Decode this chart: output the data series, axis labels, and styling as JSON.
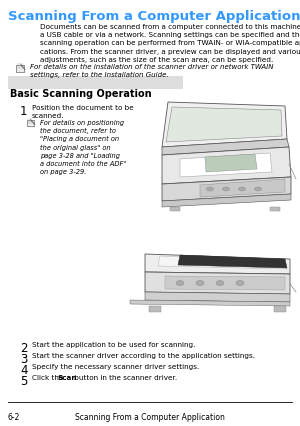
{
  "bg_color": "#ffffff",
  "title": "Scanning From a Computer Application",
  "title_color": "#3399ff",
  "title_fontsize": 9.5,
  "body_text": "Documents can be scanned from a computer connected to this machine with\na USB cable or via a network. Scanning settings can be specified and the\nscanning operation can be performed from TWAIN- or WIA-compatible appli-\ncations. From the scanner driver, a preview can be displayed and various\nadjustments, such as the size of the scan area, can be specified.",
  "body_fontsize": 5.2,
  "body_color": "#000000",
  "note1_text": "For details on the installation of the scanner driver or network TWAIN\nsettings, refer to the Installation Guide.",
  "note_fontsize": 5.0,
  "section_title": "Basic Scanning Operation",
  "section_fontsize": 7.0,
  "step1_label": "1",
  "step1_text": "Position the document to be\nscanned.",
  "step1_note": "For details on positioning\nthe document, refer to\n\"Placing a document on\nthe original glass\" on\npage 3-28 and \"Loading\na document into the ADF\"\non page 3-29.",
  "step2_text": "Start the application to be used for scanning.",
  "step3_text": "Start the scanner driver according to the application settings.",
  "step4_text": "Specify the necessary scanner driver settings.",
  "step5_pre": "Click the ",
  "step5_bold": "Scan",
  "step5_post": " button in the scanner driver.",
  "footer_left": "6-2",
  "footer_center": "Scanning From a Computer Application",
  "footer_fontsize": 5.5,
  "text_color": "#000000",
  "step_num_fontsize": 8.5,
  "body_indent": 40,
  "step_indent": 20,
  "step_text_indent": 32
}
